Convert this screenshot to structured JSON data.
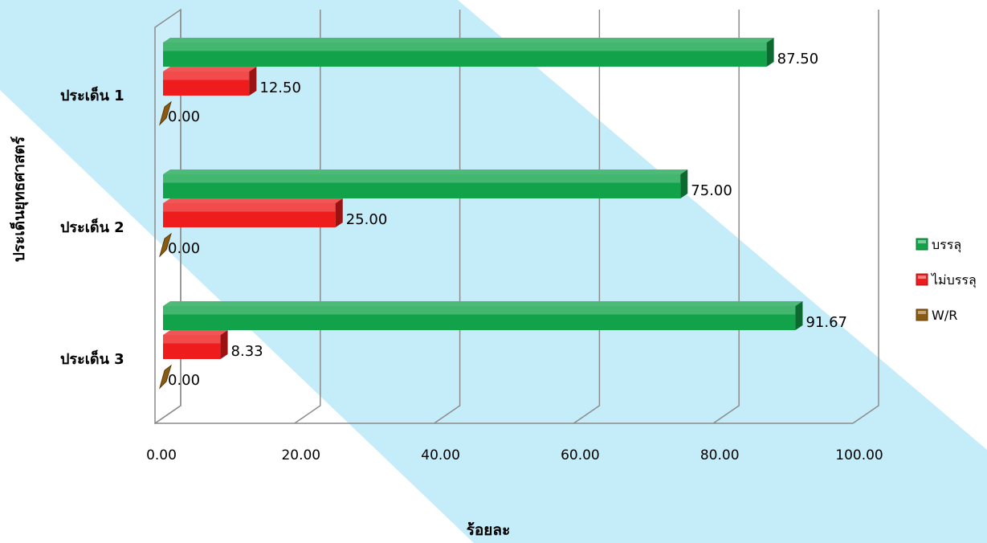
{
  "chart_data": {
    "type": "bar",
    "orientation": "horizontal",
    "three_d": true,
    "categories": [
      "ประเด็น 1",
      "ประเด็น 2",
      "ประเด็น 3"
    ],
    "series": [
      {
        "name": "บรรลุ",
        "values": [
          87.5,
          75.0,
          91.67
        ],
        "color": "#12a34a"
      },
      {
        "name": "ไม่บรรลุ",
        "values": [
          12.5,
          25.0,
          8.33
        ],
        "color": "#ee1c1c"
      },
      {
        "name": "W/R",
        "values": [
          0.0,
          0.0,
          0.0
        ],
        "color": "#8a5a10"
      }
    ],
    "data_labels": [
      [
        "87.50",
        "75.00",
        "91.67"
      ],
      [
        "12.50",
        "25.00",
        "8.33"
      ],
      [
        "0.00",
        "0.00",
        "0.00"
      ]
    ],
    "x_ticks": [
      "0.00",
      "20.00",
      "40.00",
      "60.00",
      "80.00",
      "100.00"
    ],
    "xlim": [
      0,
      100
    ],
    "xlabel": "ร้อยละ",
    "ylabel": "ประเด็นยุทธศาสตร์",
    "title": "",
    "grid": true,
    "legend_position": "right",
    "background_band_color": "#c4ecf9"
  }
}
